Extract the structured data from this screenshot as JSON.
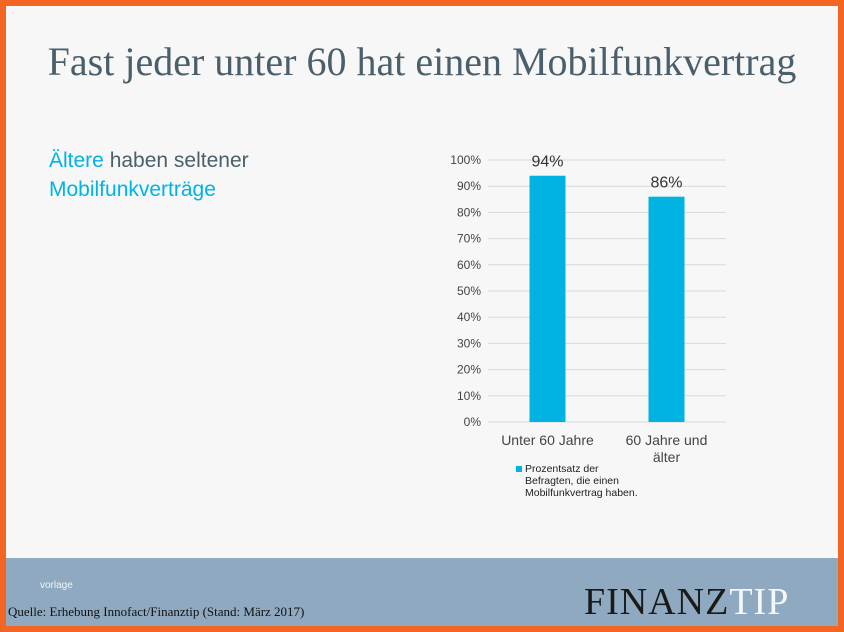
{
  "slide": {
    "title": "Fast jeder unter 60 hat einen Mobilfunkvertrag",
    "subtitle_highlight": "Ältere",
    "subtitle_rest": " haben seltener",
    "subtitle_line2": "Mobilfunkverträge"
  },
  "footer": {
    "vorlage": "vorlage",
    "source": "Quelle: Erhebung Innofact/Finanztip (Stand: März 2017)",
    "logo_part1": "FINANZ",
    "logo_part2": "TIP"
  },
  "colors": {
    "accent": "#00b3e3",
    "frame": "#f26522",
    "footer": "#8faac0"
  },
  "chart_data": {
    "type": "bar",
    "categories": [
      [
        "Unter 60 Jahre"
      ],
      [
        "60 Jahre und",
        "älter"
      ]
    ],
    "series": [
      {
        "name": "Prozentsatz der Befragten, die einen Mobilfunkvertrag haben.",
        "values": [
          94,
          86
        ]
      }
    ],
    "data_labels": [
      "94%",
      "86%"
    ],
    "ylim": [
      0,
      100
    ],
    "yticks": [
      "0%",
      "10%",
      "20%",
      "30%",
      "40%",
      "50%",
      "60%",
      "70%",
      "80%",
      "90%",
      "100%"
    ],
    "grid": true,
    "legend_position": "bottom",
    "legend_lines": [
      "Prozentsatz der",
      "Befragten, die einen",
      "Mobilfunkvertrag haben."
    ]
  }
}
